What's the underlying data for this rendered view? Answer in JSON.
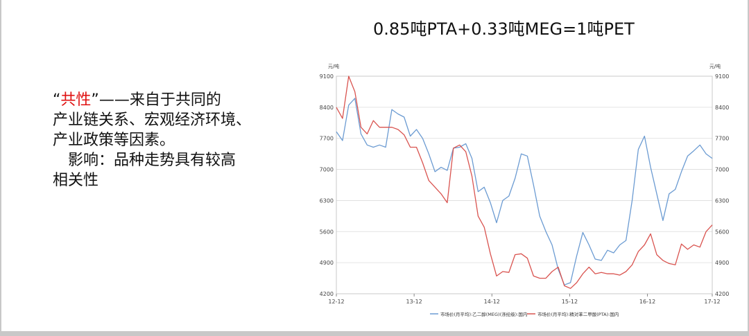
{
  "slide": {
    "title": "0.85吨PTA+0.33吨MEG=1吨PET",
    "text": {
      "open_quote": "“",
      "highlight": "共性",
      "close_quote": "”",
      "line1_rest": "——来自于共同的",
      "line2": "产业链关系、宏观经济环境、",
      "line3": "产业政策等因素。",
      "line4": "影响：品种走势具有较高",
      "line5": "相关性"
    }
  },
  "colors": {
    "meg": "#6b9bd2",
    "pta": "#d9534f",
    "grid": "#dcdcdc",
    "axis": "#888888",
    "highlight": "#e01010"
  },
  "chart_data": {
    "type": "line",
    "left_unit": "元/吨",
    "right_unit": "元/吨",
    "ylim": [
      4200,
      9100
    ],
    "yticks": [
      4200,
      4900,
      5600,
      6300,
      7000,
      7700,
      8400,
      9100
    ],
    "xlim": [
      0,
      58
    ],
    "xticks": [
      {
        "label": "12-12",
        "x": 0
      },
      {
        "label": "13-12",
        "x": 12
      },
      {
        "label": "14-12",
        "x": 24
      },
      {
        "label": "15-12",
        "x": 36
      },
      {
        "label": "16-12",
        "x": 48
      },
      {
        "label": "17-12",
        "x": 58
      }
    ],
    "grid": true,
    "legend_position": "bottom",
    "series": [
      {
        "name": "市场价(月平均):乙二醇(MEG)(涤纶级):国内",
        "color": "#6b9bd2",
        "values": [
          7850,
          7650,
          8450,
          8600,
          7800,
          7550,
          7500,
          7550,
          7500,
          8350,
          8250,
          8180,
          7750,
          7900,
          7700,
          7350,
          6950,
          7050,
          6980,
          7480,
          7500,
          7580,
          7250,
          6500,
          6600,
          6250,
          5800,
          6300,
          6400,
          6800,
          7350,
          7300,
          6650,
          5950,
          5600,
          5300,
          4750,
          4400,
          4450,
          5050,
          5580,
          5300,
          4980,
          4950,
          5180,
          5120,
          5300,
          5400,
          6300,
          7450,
          7750,
          7050,
          6450,
          5850,
          6450,
          6550,
          6950,
          7300,
          7420,
          7550,
          7350,
          7250
        ]
      },
      {
        "name": "市场价(月平均):精对苯二甲酸(PTA):国内",
        "color": "#d9534f",
        "values": [
          8400,
          8150,
          9100,
          8750,
          7950,
          7800,
          8100,
          7950,
          7950,
          7950,
          7900,
          7780,
          7500,
          7500,
          7150,
          6750,
          6600,
          6450,
          6250,
          7480,
          7550,
          7400,
          6850,
          5950,
          5700,
          5100,
          4600,
          4700,
          4680,
          5080,
          5100,
          5000,
          4600,
          4550,
          4550,
          4700,
          4800,
          4380,
          4320,
          4450,
          4650,
          4800,
          4650,
          4680,
          4650,
          4650,
          4620,
          4700,
          4850,
          5150,
          5300,
          5550,
          5080,
          4950,
          4880,
          4850,
          5320,
          5200,
          5300,
          5250,
          5600,
          5750
        ]
      }
    ]
  }
}
